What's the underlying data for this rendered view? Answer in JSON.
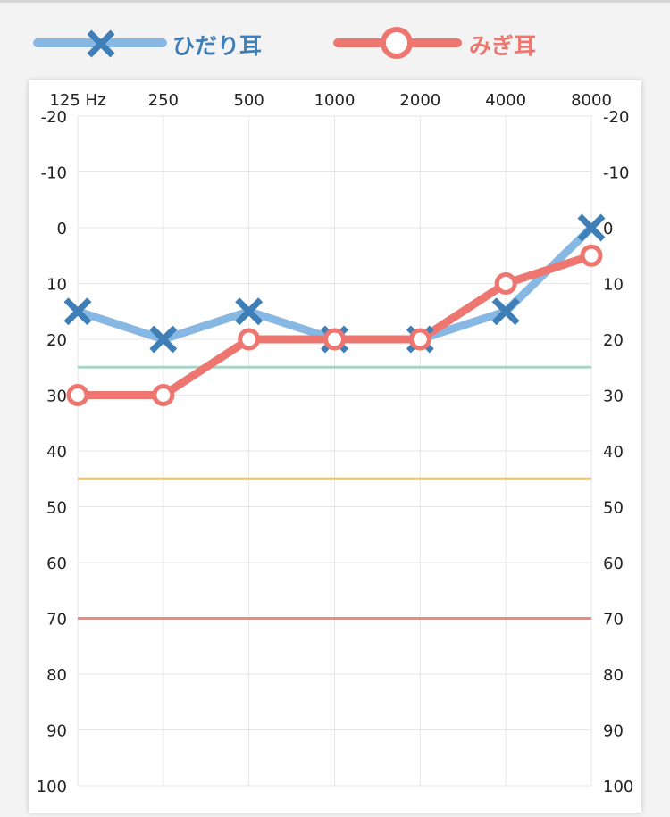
{
  "legend": {
    "left_label": "ひだり耳",
    "right_label": "みぎ耳",
    "left_color": "#86b8e3",
    "left_marker_color": "#3f7fb8",
    "right_color": "#ee7670"
  },
  "chart_data": {
    "type": "line",
    "categories": [
      "125 Hz",
      "250",
      "500",
      "1000",
      "2000",
      "4000",
      "8000"
    ],
    "y_ticks": [
      "-20",
      "-10",
      "0",
      "10",
      "20",
      "30",
      "40",
      "50",
      "60",
      "70",
      "80",
      "90",
      "100"
    ],
    "ylim": [
      -20,
      100
    ],
    "y_inverted": true,
    "grid": true,
    "legend_position": "top",
    "series": [
      {
        "name": "ひだり耳",
        "marker": "x",
        "color": "#86b8e3",
        "marker_color": "#3f7fb8",
        "values": [
          15,
          20,
          15,
          20,
          20,
          15,
          0
        ]
      },
      {
        "name": "みぎ耳",
        "marker": "circle",
        "color": "#ee7670",
        "values": [
          30,
          30,
          20,
          20,
          20,
          10,
          5
        ]
      }
    ],
    "reference_lines": [
      {
        "value": 25,
        "color": "#a8d5c7"
      },
      {
        "value": 45,
        "color": "#f3c34a"
      },
      {
        "value": 70,
        "color": "#ea8a82"
      }
    ]
  }
}
